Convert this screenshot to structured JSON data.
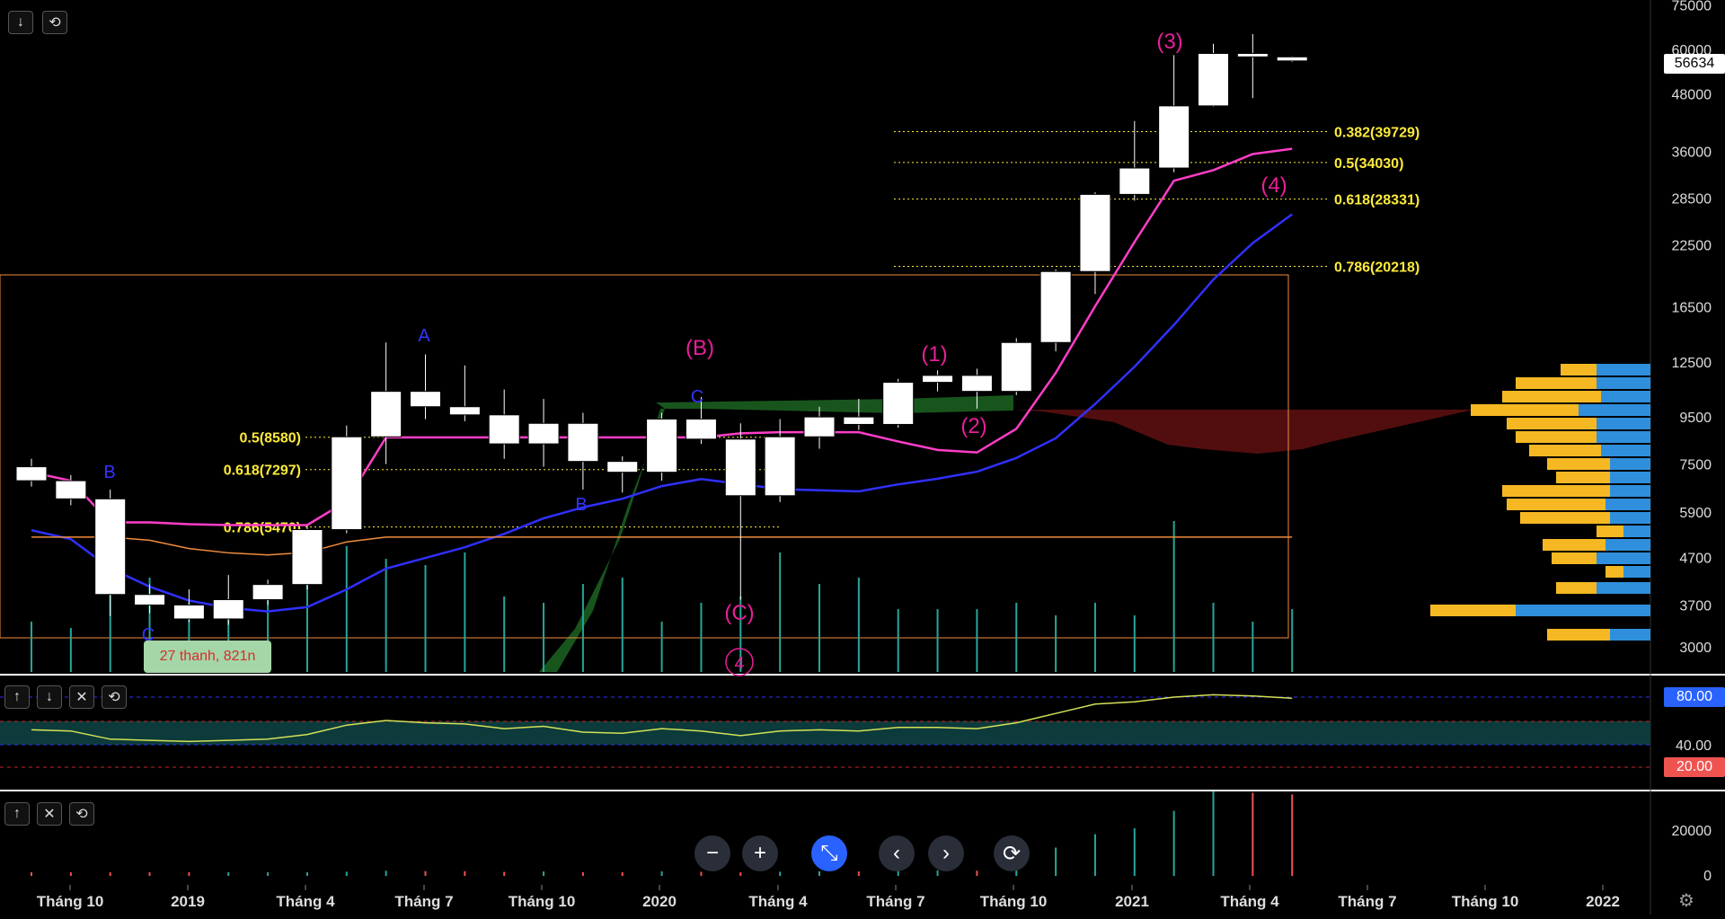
{
  "chart_data": {
    "type": "candlestick",
    "title": "",
    "y_ticks": [
      "75000",
      "60000",
      "48000",
      "36000",
      "28500",
      "22500",
      "16500",
      "12500",
      "9500",
      "7500",
      "5900",
      "4700",
      "3700",
      "3000"
    ],
    "x_ticks": [
      "Tháng 10",
      "2019",
      "Tháng 4",
      "Tháng 7",
      "Tháng 10",
      "2020",
      "Tháng 4",
      "Tháng 7",
      "Tháng 10",
      "2021",
      "Tháng 4",
      "Tháng 7",
      "Tháng 10",
      "2022"
    ],
    "last_price": "56634",
    "candles": [
      {
        "o": 7400,
        "c": 6900,
        "h": 7700,
        "l": 6700
      },
      {
        "o": 6900,
        "c": 6300,
        "h": 7100,
        "l": 6100
      },
      {
        "o": 6300,
        "c": 3900,
        "h": 6600,
        "l": 3500
      },
      {
        "o": 3900,
        "c": 3700,
        "h": 4100,
        "l": 3550
      },
      {
        "o": 3700,
        "c": 3450,
        "h": 4000,
        "l": 3400
      },
      {
        "o": 3450,
        "c": 3800,
        "h": 4300,
        "l": 3350
      },
      {
        "o": 3800,
        "c": 4100,
        "h": 4200,
        "l": 3700
      },
      {
        "o": 4100,
        "c": 5400,
        "h": 5500,
        "l": 4000
      },
      {
        "o": 5400,
        "c": 8600,
        "h": 9100,
        "l": 5300
      },
      {
        "o": 8600,
        "c": 10800,
        "h": 13800,
        "l": 7500
      },
      {
        "o": 10800,
        "c": 10000,
        "h": 13000,
        "l": 9400
      },
      {
        "o": 10000,
        "c": 9600,
        "h": 12300,
        "l": 9300
      },
      {
        "o": 9600,
        "c": 8300,
        "h": 10900,
        "l": 7700
      },
      {
        "o": 8300,
        "c": 9200,
        "h": 10400,
        "l": 7400
      },
      {
        "o": 9200,
        "c": 7600,
        "h": 9700,
        "l": 6600
      },
      {
        "o": 7600,
        "c": 7200,
        "h": 7800,
        "l": 6500
      },
      {
        "o": 7200,
        "c": 9400,
        "h": 9700,
        "l": 6900
      },
      {
        "o": 9400,
        "c": 8500,
        "h": 10500,
        "l": 8300
      },
      {
        "o": 8500,
        "c": 6400,
        "h": 9200,
        "l": 3800
      },
      {
        "o": 6400,
        "c": 8600,
        "h": 9400,
        "l": 6200
      },
      {
        "o": 8600,
        "c": 9500,
        "h": 10000,
        "l": 8100
      },
      {
        "o": 9500,
        "c": 9150,
        "h": 10400,
        "l": 8900
      },
      {
        "o": 9150,
        "c": 11300,
        "h": 11500,
        "l": 9000
      },
      {
        "o": 11300,
        "c": 11700,
        "h": 12000,
        "l": 10800
      },
      {
        "o": 11700,
        "c": 10800,
        "h": 12100,
        "l": 9900
      },
      {
        "o": 10800,
        "c": 13800,
        "h": 14100,
        "l": 10600
      },
      {
        "o": 13800,
        "c": 19700,
        "h": 19900,
        "l": 13200
      },
      {
        "o": 19700,
        "c": 29000,
        "h": 29300,
        "l": 17600
      },
      {
        "o": 29000,
        "c": 33100,
        "h": 41900,
        "l": 28100
      },
      {
        "o": 33100,
        "c": 45200,
        "h": 58300,
        "l": 32400
      },
      {
        "o": 45200,
        "c": 58800,
        "h": 61700,
        "l": 45000
      },
      {
        "o": 58800,
        "c": 57800,
        "h": 64800,
        "l": 47000
      },
      {
        "o": 57800,
        "c": 56634,
        "h": 58000,
        "l": 56300
      }
    ],
    "volume_bars": [
      0.4,
      0.35,
      1,
      0.75,
      0.55,
      0.5,
      0.6,
      0.8,
      1,
      0.9,
      0.85,
      0.95,
      0.6,
      0.55,
      0.7,
      0.75,
      0.4,
      0.55,
      0.6,
      0.95,
      0.7,
      0.75,
      0.5,
      0.5,
      0.5,
      0.55,
      0.45,
      0.55,
      0.45,
      1.2,
      0.55,
      0.4,
      0.5
    ],
    "fib_levels": [
      {
        "label": "0.382(39729)",
        "value": 39729
      },
      {
        "label": "0.5(34030)",
        "value": 34030
      },
      {
        "label": "0.618(28331)",
        "value": 28331
      },
      {
        "label": "0.786(20218)",
        "value": 20218
      },
      {
        "label": "0.5(8580)",
        "value": 8580
      },
      {
        "label": "0.618(7297)",
        "value": 7297
      },
      {
        "label": "0.786(5470)",
        "value": 5470
      }
    ],
    "wave_labels": [
      {
        "text": "(3)",
        "color": "#e91e9a"
      },
      {
        "text": "(4)",
        "color": "#e91e9a"
      },
      {
        "text": "(1)",
        "color": "#e91e9a"
      },
      {
        "text": "(2)",
        "color": "#e91e9a"
      },
      {
        "text": "(B)",
        "color": "#e91e9a"
      },
      {
        "text": "(C)",
        "color": "#e91e9a"
      },
      {
        "text": "4",
        "color": "#e91e9a"
      },
      {
        "text": "A",
        "color": "#3333ff"
      },
      {
        "text": "B",
        "color": "#3333ff"
      },
      {
        "text": "C",
        "color": "#3333ff"
      },
      {
        "text": "B",
        "color": "#3333ff"
      },
      {
        "text": "C",
        "color": "#3333ff"
      }
    ],
    "rsi": {
      "ticks": [
        "80.00",
        "40.00",
        "20.00"
      ],
      "values": [
        52,
        51,
        44,
        43,
        42,
        43,
        44,
        48,
        56,
        60,
        58,
        57,
        53,
        55,
        50,
        49,
        53,
        51,
        47,
        51,
        52,
        51,
        54,
        54,
        53,
        58,
        66,
        74,
        76,
        80,
        82,
        81,
        79
      ]
    },
    "volume_pane": {
      "ticks": [
        "20000",
        "0"
      ]
    }
  },
  "tooltip": "27 thanh, 821n",
  "colors": {
    "candle": "#ffffff",
    "ma_magenta": "#ff3ec8",
    "ma_blue": "#3030ff",
    "ma_orange": "#f08c3c",
    "fib": "#ffeb3b",
    "rsi_line": "#d4e157",
    "rsi_band": "#0d3b3b",
    "volume": "#26a69a"
  },
  "icons": {
    "down": "arrow-down-icon",
    "reset": "reset-icon",
    "up": "arrow-up-icon",
    "close": "close-icon"
  }
}
